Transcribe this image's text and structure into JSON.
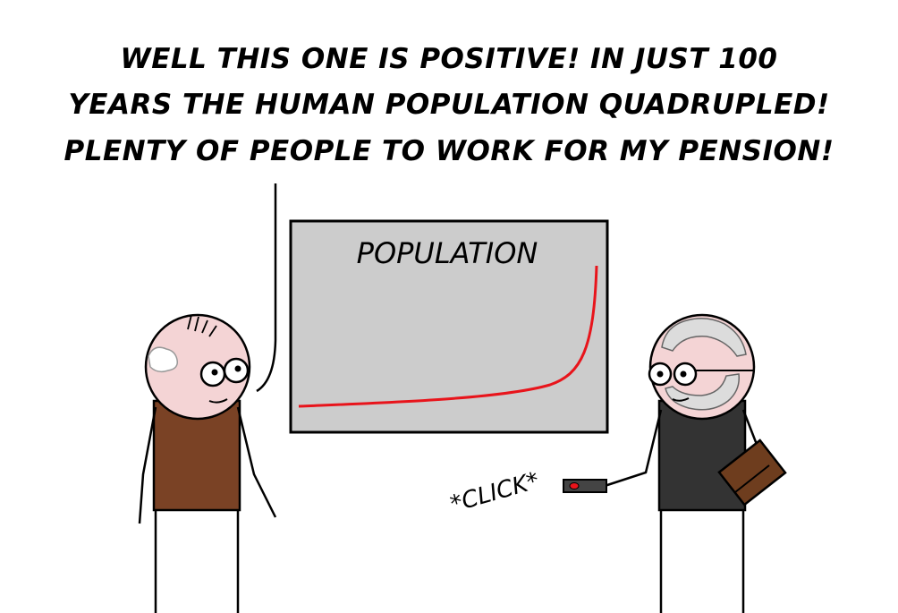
{
  "speech": {
    "line1": "WELL THIS ONE IS POSITIVE! IN JUST 100",
    "line2": "YEARS THE HUMAN POPULATION QUADRUPLED!",
    "line3": "PLENTY OF PEOPLE TO WORK FOR MY PENSION!"
  },
  "slide": {
    "title": "POPULATION"
  },
  "sound_effect": {
    "text": "*CLICK*"
  },
  "colors": {
    "slide_bg": "#cccccc",
    "curve": "#e8141b",
    "skin": "#f4d4d5",
    "left_shirt": "#7a4225",
    "right_shirt": "#333333",
    "beard": "#dcdcdc",
    "briefcase": "#6e3d1e",
    "remote_button": "#e8141b"
  }
}
